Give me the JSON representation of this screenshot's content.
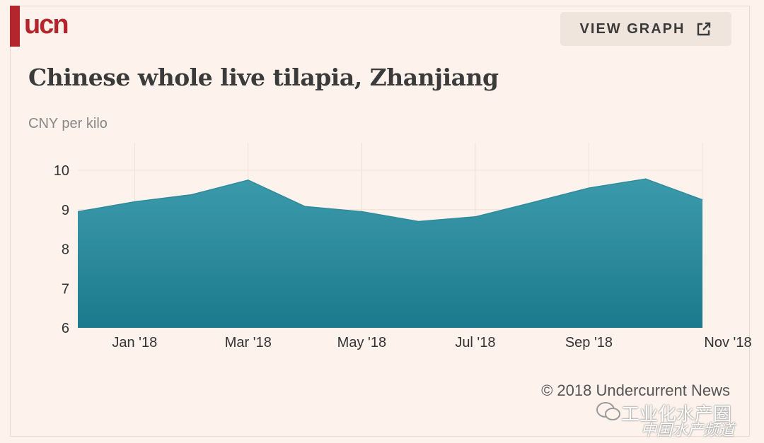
{
  "brand": {
    "logo_text": "ucn",
    "logo_color": "#b5262c"
  },
  "header": {
    "view_graph_label": "VIEW GRAPH",
    "external_icon": "external-link-icon"
  },
  "footer": {
    "copyright": "© 2018 Undercurrent News"
  },
  "watermark": {
    "line1": "工业化水产圈",
    "line2": "中国水产频道",
    "icon": "wechat-icon"
  },
  "chart_data": {
    "type": "area",
    "title": "Chinese whole live tilapia, Zhanjiang",
    "ylabel": "CNY per kilo",
    "xlabel": "",
    "x": [
      "Dec '17",
      "Jan '18",
      "Feb '18",
      "Mar '18",
      "Apr '18",
      "May '18",
      "Jun '18",
      "Jul '18",
      "Aug '18",
      "Sep '18",
      "Oct '18",
      "Nov '18"
    ],
    "values": [
      8.95,
      9.2,
      9.38,
      9.75,
      9.08,
      8.95,
      8.7,
      8.82,
      9.18,
      9.55,
      9.78,
      9.25
    ],
    "xticks": [
      "Jan '18",
      "Mar '18",
      "May '18",
      "Jul '18",
      "Sep '18",
      "Nov '18"
    ],
    "yticks": [
      6,
      7,
      8,
      9,
      10
    ],
    "ylim": [
      6,
      10.7
    ],
    "grid": true,
    "legend": "none",
    "fill_color_top": "#3b9aaa",
    "fill_color_bottom": "#1c7a8e"
  }
}
